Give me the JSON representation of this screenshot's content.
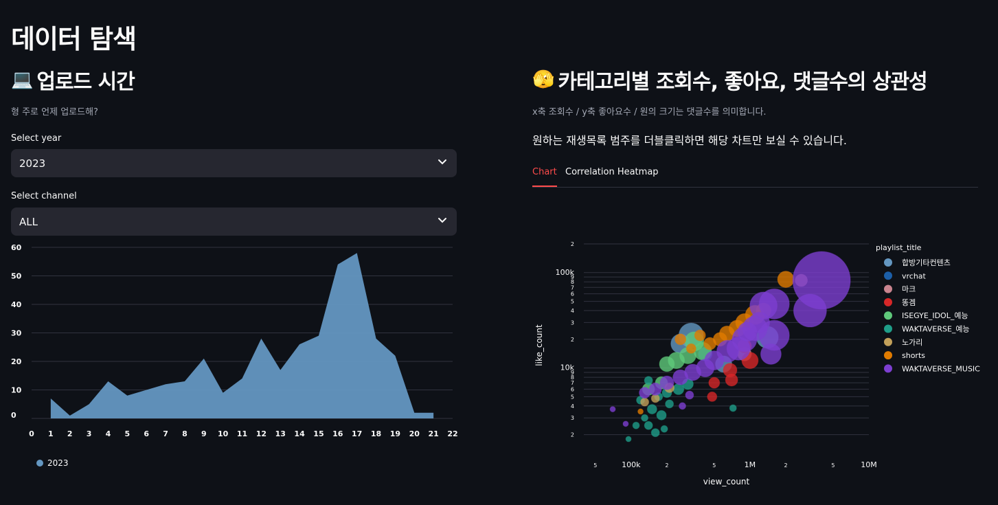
{
  "page": {
    "title": "데이터 탐색"
  },
  "left": {
    "section_icon": "💻",
    "section_title": "업로드 시간",
    "caption": "형 주로 언제 업로드해?",
    "year_label": "Select year",
    "year_value": "2023",
    "channel_label": "Select channel",
    "channel_value": "ALL"
  },
  "right": {
    "section_icon": "🫣",
    "section_title": "카테고리별 조회수, 좋아요, 댓글수의 상관성",
    "caption": "x축 조회수 / y축 좋아요수 / 원의 크기는 댓글수를 의미합니다.",
    "note": "원하는 재생목록 범주를 더블클릭하면 해당 차트만 보실 수 있습니다.",
    "tabs": [
      {
        "label": "Chart",
        "active": true
      },
      {
        "label": "Correlation Heatmap",
        "active": false
      }
    ]
  },
  "chart_data": [
    {
      "type": "area",
      "x": [
        1,
        2,
        3,
        4,
        5,
        6,
        7,
        8,
        9,
        10,
        11,
        12,
        13,
        14,
        15,
        16,
        17,
        18,
        19,
        20,
        21
      ],
      "series": [
        {
          "name": "2023",
          "color": "#6497c1",
          "values": [
            7,
            1,
            5,
            13,
            8,
            10,
            12,
            13,
            21,
            9,
            14,
            28,
            17,
            26,
            29,
            54,
            58,
            28,
            22,
            2,
            2
          ]
        }
      ],
      "xlim": [
        0,
        22
      ],
      "ylim": [
        0,
        60
      ],
      "xticks": [
        0,
        1,
        2,
        3,
        4,
        5,
        6,
        7,
        8,
        9,
        10,
        11,
        12,
        13,
        14,
        15,
        16,
        17,
        18,
        19,
        20,
        21,
        22
      ],
      "yticks": [
        0,
        10,
        20,
        30,
        40,
        50,
        60
      ],
      "legend_placement": "bottom-left",
      "grid": true
    },
    {
      "type": "scatter",
      "xlabel": "view_count",
      "ylabel": "like_count",
      "x_scale": "log",
      "y_scale": "log",
      "xlim": [
        40000,
        10000000
      ],
      "ylim": [
        1500,
        200000
      ],
      "xtick_labels": [
        "5",
        "100k",
        "2",
        "5",
        "1M",
        "2",
        "5",
        "10M"
      ],
      "ytick_labels": [
        "2",
        "3",
        "4",
        "5",
        "6",
        "7",
        "8",
        "9",
        "10k",
        "2",
        "3",
        "4",
        "5",
        "6",
        "7",
        "8",
        "9",
        "100k",
        "2"
      ],
      "legend_title": "playlist_title",
      "legend_placement": "right",
      "series": [
        {
          "name": "합방기타컨텐츠",
          "color": "#6497c1",
          "points": [
            [
              260000,
              18000,
              14
            ],
            [
              320000,
              22000,
              18
            ],
            [
              1400000,
              21000,
              16
            ],
            [
              600000,
              11000,
              12
            ]
          ]
        },
        {
          "name": "vrchat",
          "color": "#1c5fa8",
          "points": [
            [
              420000,
              14000,
              10
            ]
          ]
        },
        {
          "name": "마크",
          "color": "#c9848f",
          "points": [
            [
              2700000,
              83000,
              9
            ],
            [
              900000,
              14000,
              10
            ]
          ]
        },
        {
          "name": "똥겜",
          "color": "#d62728",
          "points": [
            [
              680000,
              9500,
              10
            ],
            [
              1000000,
              12000,
              12
            ],
            [
              500000,
              7000,
              8
            ],
            [
              700000,
              7500,
              9
            ],
            [
              900000,
              17000,
              10
            ],
            [
              480000,
              5000,
              7
            ]
          ]
        },
        {
          "name": "ISEGYE_IDOL_예능",
          "color": "#5fc97b",
          "points": [
            [
              340000,
              19000,
              14
            ],
            [
              240000,
              12000,
              12
            ],
            [
              200000,
              11000,
              11
            ],
            [
              300000,
              13500,
              12
            ],
            [
              400000,
              15000,
              13
            ],
            [
              140000,
              6000,
              9
            ],
            [
              180000,
              7000,
              9
            ]
          ]
        },
        {
          "name": "WAKTAVERSE_예능",
          "color": "#1f9e89",
          "points": [
            [
              95000,
              1800,
              4
            ],
            [
              140000,
              2500,
              6
            ],
            [
              160000,
              2100,
              6
            ],
            [
              180000,
              3200,
              7
            ],
            [
              150000,
              3700,
              7
            ],
            [
              120000,
              4600,
              6
            ],
            [
              200000,
              5500,
              7
            ],
            [
              250000,
              6000,
              8
            ],
            [
              300000,
              6800,
              8
            ],
            [
              140000,
              7400,
              6
            ],
            [
              170000,
              5000,
              6
            ],
            [
              720000,
              3800,
              5
            ],
            [
              110000,
              2500,
              5
            ],
            [
              130000,
              3000,
              5
            ],
            [
              190000,
              2300,
              5
            ],
            [
              210000,
              4200,
              6
            ]
          ]
        },
        {
          "name": "노가리",
          "color": "#c2a05a",
          "points": [
            [
              130000,
              4400,
              6
            ],
            [
              160000,
              4800,
              6
            ],
            [
              210000,
              6200,
              7
            ]
          ]
        },
        {
          "name": "shorts",
          "color": "#e07b00",
          "points": [
            [
              2000000,
              85000,
              12
            ],
            [
              1100000,
              36000,
              14
            ],
            [
              900000,
              30000,
              13
            ],
            [
              780000,
              26000,
              12
            ],
            [
              640000,
              23000,
              11
            ],
            [
              560000,
              20000,
              10
            ],
            [
              460000,
              18000,
              9
            ],
            [
              380000,
              22000,
              8
            ],
            [
              320000,
              16000,
              7
            ],
            [
              120000,
              3500,
              4
            ],
            [
              1300000,
              40000,
              11
            ],
            [
              260000,
              20000,
              8
            ]
          ]
        },
        {
          "name": "WAKTAVERSE_MUSIC",
          "color": "#7d3fd1",
          "points": [
            [
              4000000,
              83000,
              42
            ],
            [
              1600000,
              47000,
              22
            ],
            [
              3200000,
              40000,
              24
            ],
            [
              1300000,
              45000,
              20
            ],
            [
              1600000,
              22000,
              22
            ],
            [
              1500000,
              14000,
              15
            ],
            [
              1100000,
              26000,
              18
            ],
            [
              900000,
              20000,
              18
            ],
            [
              800000,
              16000,
              17
            ],
            [
              650000,
              15000,
              16
            ],
            [
              500000,
              12000,
              14
            ],
            [
              420000,
              10000,
              13
            ],
            [
              330000,
              9000,
              12
            ],
            [
              260000,
              8000,
              11
            ],
            [
              200000,
              7000,
              10
            ],
            [
              160000,
              6000,
              9
            ],
            [
              130000,
              5500,
              8
            ],
            [
              1200000,
              30000,
              15
            ],
            [
              950000,
              24000,
              14
            ],
            [
              70000,
              3700,
              4
            ],
            [
              90000,
              2600,
              4
            ],
            [
              270000,
              4000,
              5
            ],
            [
              310000,
              5200,
              6
            ]
          ]
        }
      ]
    }
  ]
}
